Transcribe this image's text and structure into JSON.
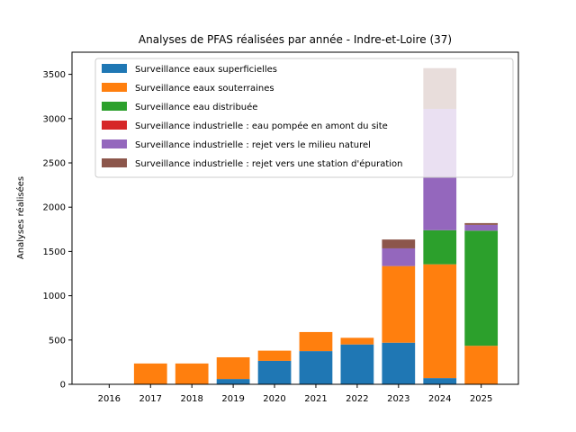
{
  "chart_data": {
    "type": "bar",
    "stacked": true,
    "title": "Analyses de PFAS réalisées par année - Indre-et-Loire (37)",
    "xlabel": "",
    "ylabel": "Analyses réalisées",
    "categories": [
      "2016",
      "2017",
      "2018",
      "2019",
      "2020",
      "2021",
      "2022",
      "2023",
      "2024",
      "2025"
    ],
    "ylim": [
      0,
      3750
    ],
    "yticks": [
      0,
      500,
      1000,
      1500,
      2000,
      2500,
      3000,
      3500
    ],
    "legend_position": "top-left",
    "series": [
      {
        "name": "Surveillance eaux superficielles",
        "color": "#1f77b4",
        "values": [
          0,
          0,
          0,
          60,
          265,
          375,
          450,
          470,
          70,
          0
        ]
      },
      {
        "name": "Surveillance eaux souterraines",
        "color": "#ff7f0e",
        "values": [
          0,
          235,
          235,
          245,
          115,
          215,
          75,
          865,
          1285,
          435
        ]
      },
      {
        "name": "Surveillance eau distribuée",
        "color": "#2ca02c",
        "values": [
          0,
          0,
          0,
          0,
          0,
          0,
          0,
          0,
          385,
          1300
        ]
      },
      {
        "name": "Surveillance industrielle : eau pompée en amont du site",
        "color": "#d62728",
        "values": [
          0,
          0,
          0,
          0,
          0,
          0,
          0,
          0,
          0,
          0
        ]
      },
      {
        "name": "Surveillance industrielle : rejet vers le milieu naturel",
        "color": "#9467bd",
        "values": [
          0,
          0,
          0,
          0,
          0,
          0,
          0,
          200,
          1370,
          65
        ]
      },
      {
        "name": "Surveillance industrielle : rejet vers une station d'épuration",
        "color": "#8c564b",
        "values": [
          0,
          0,
          0,
          0,
          0,
          0,
          0,
          100,
          460,
          20
        ]
      }
    ]
  }
}
